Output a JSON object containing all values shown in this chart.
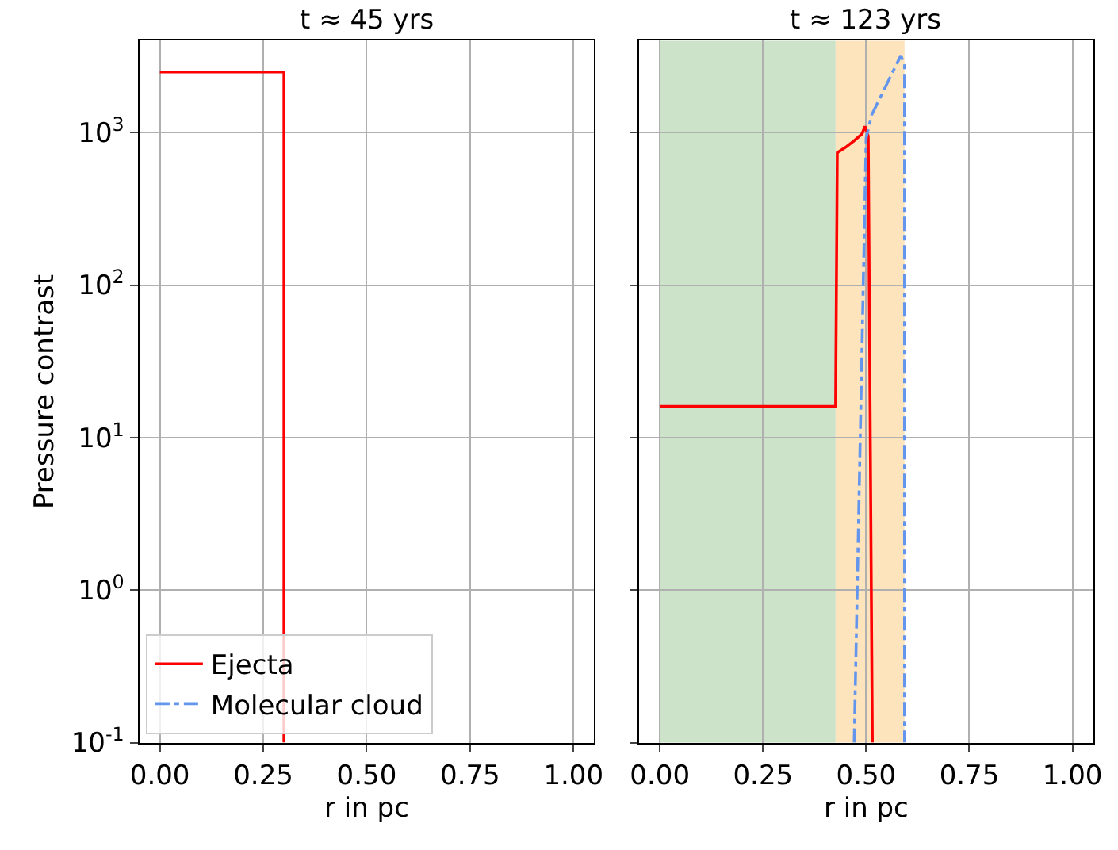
{
  "chart_data": [
    {
      "type": "line",
      "title": "t ≈ 45 yrs",
      "xlabel": "r in pc",
      "ylabel": "Pressure contrast",
      "log": "y",
      "grid": true,
      "xlim": [
        -0.05,
        1.05
      ],
      "xticks": [
        {
          "value": 0,
          "label": "0.00"
        },
        {
          "value": 0.25,
          "label": "0.25"
        },
        {
          "value": 0.5,
          "label": "0.50"
        },
        {
          "value": 0.75,
          "label": "0.75"
        },
        {
          "value": 1,
          "label": "1.00"
        }
      ],
      "ylim": [
        0.1,
        4000
      ],
      "yticks": [
        {
          "value": 0.1,
          "label": "10$^{-1}$"
        },
        {
          "value": 1,
          "label": "10$^{0}$"
        },
        {
          "value": 10,
          "label": "10$^{1}$"
        },
        {
          "value": 100,
          "label": "10$^{2}$"
        },
        {
          "value": 1000,
          "label": "10$^{3}$"
        }
      ],
      "series": [
        {
          "color": "#ff0000",
          "line_style": "solid",
          "x": [
            0,
            0.3,
            0.3
          ],
          "values": [
            2500,
            2500,
            0.1
          ]
        }
      ]
    },
    {
      "type": "line",
      "title": "t ≈ 123 yrs",
      "xlabel": "r in pc",
      "log": "y",
      "grid": true,
      "tick_labels": "x",
      "legend": "bottom left",
      "xlim": [
        -0.05,
        1.05
      ],
      "xticks": [
        {
          "value": 0,
          "label": "0.00"
        },
        {
          "value": 0.25,
          "label": "0.25"
        },
        {
          "value": 0.5,
          "label": "0.50"
        },
        {
          "value": 0.75,
          "label": "0.75"
        },
        {
          "value": 1,
          "label": "1.00"
        }
      ],
      "ylim": [
        0.1,
        4000
      ],
      "yticks": [
        {
          "value": 0.1,
          "label": "10$^{-1}$"
        },
        {
          "value": 1,
          "label": "10$^{0}$"
        },
        {
          "value": 10,
          "label": "10$^{1}$"
        },
        {
          "value": 100,
          "label": "10$^{2}$"
        },
        {
          "value": 1000,
          "label": "10$^{3}$"
        }
      ],
      "bands": [
        {
          "axis": "x",
          "from": 0,
          "to": 0.426,
          "color": "#cce3c9"
        },
        {
          "axis": "x",
          "from": 0.426,
          "to": 0.593,
          "color": "#fde4bd"
        }
      ],
      "series": [
        {
          "name": "Ejecta",
          "color": "#ff0000",
          "line_style": "solid",
          "x": [
            0,
            0.426,
            0.43,
            0.45,
            0.47,
            0.49,
            0.497,
            0.505,
            0.515
          ],
          "values": [
            16,
            16,
            740,
            800,
            880,
            980,
            1100,
            950,
            0.1
          ]
        },
        {
          "name": "Molecular cloud",
          "color": "#6495ed",
          "line_style": "dashdot",
          "x": [
            0.471,
            0.5,
            0.513,
            0.584,
            0.593,
            0.593
          ],
          "values": [
            0.1,
            920,
            1300,
            3200,
            2800,
            0.1
          ]
        }
      ]
    }
  ]
}
